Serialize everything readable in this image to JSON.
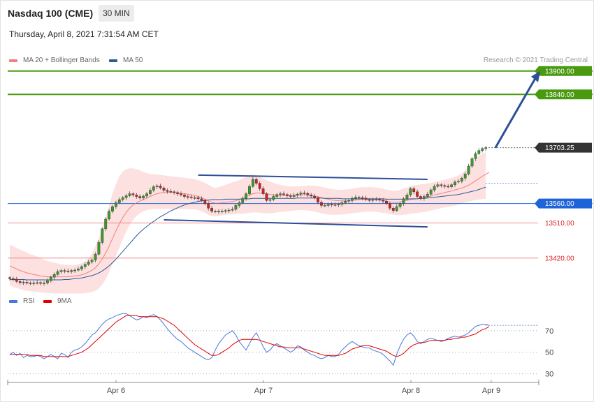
{
  "header": {
    "instrument": "Nasdaq 100 (CME)",
    "timeframe": "30 MIN",
    "datetime": "Thursday, April 8, 2021 7:31:54 AM CET"
  },
  "legend": {
    "ma20": "MA 20 + Bollinger Bands",
    "ma50": "MA 50",
    "ma20_color": "#f08080",
    "ma50_color": "#2e5a99",
    "copyright": "Research © 2021 Trading Central"
  },
  "rsi_legend": {
    "rsi": "RSI",
    "ma9": "9MA",
    "rsi_color": "#4a78d8",
    "ma9_color": "#e00000"
  },
  "colors": {
    "bull": "#3a9a2a",
    "bear": "#cc2222",
    "band_fill": "#fde0e0",
    "resistance": "#4a9a10",
    "support": "#ee8888",
    "pivot": "#1e64d8",
    "channel": "#2e4f99",
    "last_price_bg": "#333333"
  },
  "chart_data": [
    {
      "type": "candlestick",
      "title": "Nasdaq 100 (CME) 30 MIN",
      "x_ticks": [
        "Apr 6",
        "Apr 7",
        "Apr 8",
        "Apr 9"
      ],
      "ylim": [
        13330,
        13930
      ],
      "closes": [
        13367,
        13366,
        13360,
        13357,
        13358,
        13356,
        13355,
        13356,
        13357,
        13355,
        13356,
        13362,
        13371,
        13378,
        13385,
        13388,
        13387,
        13385,
        13388,
        13389,
        13392,
        13398,
        13404,
        13410,
        13415,
        13430,
        13460,
        13495,
        13520,
        13540,
        13552,
        13562,
        13570,
        13575,
        13580,
        13585,
        13582,
        13578,
        13574,
        13579,
        13585,
        13594,
        13603,
        13605,
        13600,
        13594,
        13591,
        13590,
        13588,
        13585,
        13582,
        13578,
        13577,
        13575,
        13575,
        13572,
        13568,
        13560,
        13548,
        13540,
        13540,
        13539,
        13540,
        13542,
        13543,
        13545,
        13555,
        13562,
        13572,
        13585,
        13604,
        13622,
        13612,
        13598,
        13585,
        13568,
        13570,
        13578,
        13583,
        13585,
        13583,
        13580,
        13578,
        13581,
        13584,
        13587,
        13586,
        13582,
        13579,
        13575,
        13563,
        13555,
        13555,
        13558,
        13557,
        13556,
        13558,
        13562,
        13566,
        13568,
        13573,
        13576,
        13575,
        13574,
        13570,
        13568,
        13570,
        13571,
        13569,
        13566,
        13560,
        13548,
        13542,
        13552,
        13560,
        13572,
        13582,
        13598,
        13590,
        13578,
        13573,
        13578,
        13584,
        13595,
        13604,
        13608,
        13606,
        13604,
        13603,
        13608,
        13615,
        13617,
        13625,
        13636,
        13656,
        13675,
        13688,
        13696,
        13701,
        13703
      ],
      "bollinger_upper": [
        13455,
        13450,
        13446,
        13442,
        13438,
        13434,
        13430,
        13427,
        13424,
        13420,
        13416,
        13413,
        13410,
        13408,
        13406,
        13404,
        13403,
        13402,
        13402,
        13402,
        13404,
        13407,
        13412,
        13420,
        13432,
        13450,
        13472,
        13498,
        13525,
        13555,
        13585,
        13610,
        13630,
        13642,
        13648,
        13650,
        13650,
        13648,
        13645,
        13641,
        13638,
        13636,
        13635,
        13634,
        13633,
        13632,
        13631,
        13630,
        13629,
        13628,
        13627,
        13626,
        13625,
        13624,
        13622,
        13620,
        13617,
        13613,
        13608,
        13603,
        13600,
        13602,
        13605,
        13608,
        13611,
        13614,
        13617,
        13620,
        13624,
        13628,
        13632,
        13634,
        13632,
        13628,
        13624,
        13620,
        13616,
        13613,
        13610,
        13608,
        13606,
        13605,
        13604,
        13604,
        13604,
        13604,
        13605,
        13606,
        13606,
        13606,
        13605,
        13603,
        13601,
        13599,
        13597,
        13596,
        13595,
        13595,
        13596,
        13597,
        13598,
        13600,
        13601,
        13602,
        13602,
        13602,
        13602,
        13601,
        13600,
        13598,
        13596,
        13594,
        13592,
        13593,
        13595,
        13598,
        13601,
        13604,
        13606,
        13608,
        13609,
        13610,
        13611,
        13613,
        13615,
        13617,
        13619,
        13621,
        13623,
        13625,
        13628,
        13632,
        13637,
        13645,
        13655,
        13665,
        13674,
        13682,
        13688,
        13692
      ],
      "bollinger_lower": [
        13350,
        13346,
        13343,
        13340,
        13338,
        13336,
        13335,
        13334,
        13333,
        13332,
        13331,
        13330,
        13330,
        13329,
        13329,
        13329,
        13329,
        13329,
        13329,
        13329,
        13329,
        13329,
        13330,
        13331,
        13333,
        13336,
        13342,
        13352,
        13366,
        13384,
        13404,
        13425,
        13447,
        13468,
        13488,
        13505,
        13518,
        13528,
        13535,
        13540,
        13543,
        13545,
        13546,
        13546,
        13546,
        13546,
        13546,
        13546,
        13546,
        13546,
        13546,
        13546,
        13546,
        13545,
        13545,
        13543,
        13540,
        13536,
        13531,
        13528,
        13527,
        13528,
        13530,
        13531,
        13532,
        13532,
        13533,
        13534,
        13534,
        13535,
        13536,
        13537,
        13537,
        13536,
        13535,
        13535,
        13535,
        13536,
        13537,
        13538,
        13539,
        13540,
        13541,
        13542,
        13543,
        13543,
        13543,
        13542,
        13541,
        13539,
        13537,
        13535,
        13533,
        13532,
        13531,
        13531,
        13531,
        13532,
        13533,
        13534,
        13535,
        13536,
        13537,
        13538,
        13539,
        13539,
        13539,
        13538,
        13537,
        13536,
        13535,
        13533,
        13531,
        13530,
        13530,
        13531,
        13532,
        13534,
        13535,
        13536,
        13537,
        13538,
        13540,
        13542,
        13544,
        13546,
        13548,
        13550,
        13551,
        13553,
        13555,
        13557,
        13560,
        13563,
        13565,
        13567,
        13569,
        13570,
        13571,
        13572
      ],
      "ma20": [
        13400,
        13396,
        13392,
        13388,
        13385,
        13382,
        13380,
        13378,
        13376,
        13374,
        13373,
        13372,
        13372,
        13372,
        13372,
        13372,
        13372,
        13372,
        13373,
        13374,
        13375,
        13377,
        13380,
        13384,
        13389,
        13395,
        13405,
        13418,
        13433,
        13450,
        13470,
        13490,
        13508,
        13524,
        13537,
        13548,
        13556,
        13562,
        13566,
        13570,
        13574,
        13578,
        13582,
        13585,
        13587,
        13588,
        13589,
        13589,
        13588,
        13587,
        13586,
        13585,
        13584,
        13582,
        13580,
        13578,
        13575,
        13571,
        13567,
        13563,
        13561,
        13561,
        13562,
        13563,
        13564,
        13565,
        13567,
        13570,
        13574,
        13578,
        13582,
        13585,
        13587,
        13587,
        13586,
        13585,
        13583,
        13582,
        13581,
        13580,
        13580,
        13580,
        13580,
        13581,
        13582,
        13582,
        13582,
        13582,
        13581,
        13579,
        13577,
        13575,
        13573,
        13571,
        13569,
        13568,
        13567,
        13567,
        13567,
        13567,
        13568,
        13569,
        13570,
        13571,
        13571,
        13571,
        13571,
        13570,
        13569,
        13568,
        13566,
        13564,
        13563,
        13563,
        13564,
        13566,
        13568,
        13570,
        13571,
        13572,
        13573,
        13575,
        13577,
        13579,
        13582,
        13584,
        13586,
        13588,
        13590,
        13592,
        13595,
        13597,
        13600,
        13603,
        13607,
        13612,
        13618,
        13624,
        13630,
        13635,
        13640
      ],
      "ma50": [
        13365,
        13365,
        13365,
        13365,
        13365,
        13364,
        13364,
        13364,
        13364,
        13364,
        13364,
        13364,
        13364,
        13364,
        13364,
        13364,
        13365,
        13365,
        13366,
        13367,
        13368,
        13369,
        13371,
        13373,
        13375,
        13378,
        13382,
        13387,
        13393,
        13400,
        13408,
        13417,
        13427,
        13437,
        13447,
        13457,
        13467,
        13477,
        13486,
        13494,
        13501,
        13508,
        13514,
        13520,
        13526,
        13531,
        13536,
        13541,
        13545,
        13549,
        13553,
        13556,
        13559,
        13561,
        13563,
        13565,
        13567,
        13568,
        13569,
        13570,
        13570,
        13570,
        13570,
        13571,
        13571,
        13571,
        13571,
        13571,
        13572,
        13572,
        13572,
        13573,
        13573,
        13573,
        13573,
        13573,
        13573,
        13573,
        13573,
        13573,
        13573,
        13573,
        13573,
        13573,
        13574,
        13574,
        13574,
        13574,
        13574,
        13574,
        13574,
        13574,
        13573,
        13573,
        13573,
        13573,
        13573,
        13572,
        13572,
        13572,
        13572,
        13572,
        13572,
        13572,
        13572,
        13572,
        13572,
        13572,
        13572,
        13572,
        13571,
        13571,
        13571,
        13571,
        13571,
        13571,
        13571,
        13572,
        13572,
        13572,
        13573,
        13573,
        13574,
        13575,
        13576,
        13577,
        13578,
        13579,
        13580,
        13581,
        13582,
        13583,
        13585,
        13587,
        13589,
        13591,
        13593,
        13596,
        13599,
        13602
      ],
      "levels": [
        {
          "label": "13900.00",
          "value": 13900,
          "kind": "resistance"
        },
        {
          "label": "13840.00",
          "value": 13840,
          "kind": "resistance"
        },
        {
          "label": "13703.25",
          "value": 13703.25,
          "kind": "last"
        },
        {
          "label": "13560.00",
          "value": 13560,
          "kind": "pivot"
        },
        {
          "label": "13510.00",
          "value": 13510,
          "kind": "support"
        },
        {
          "label": "13420.00",
          "value": 13420,
          "kind": "support"
        }
      ],
      "channel": {
        "upper": [
          {
            "i": 55,
            "v": 13633
          },
          {
            "i": 122,
            "v": 13622
          }
        ],
        "lower": [
          {
            "i": 45,
            "v": 13518
          },
          {
            "i": 122,
            "v": 13500
          }
        ]
      },
      "target_arrow": {
        "from": {
          "i": 141,
          "v": 13703
        },
        "to": {
          "i": 150,
          "v": 13900
        }
      }
    },
    {
      "type": "line",
      "title": "RSI",
      "ylim": [
        20,
        90
      ],
      "y_ticks": [
        30,
        50,
        70
      ],
      "series": [
        {
          "name": "RSI",
          "values": [
            48,
            50,
            47,
            49,
            45,
            47,
            46,
            46,
            47,
            46,
            44,
            46,
            48,
            46,
            44,
            49,
            48,
            45,
            50,
            52,
            53,
            55,
            58,
            62,
            66,
            68,
            72,
            76,
            79,
            81,
            82,
            84,
            85,
            86,
            86,
            84,
            82,
            80,
            81,
            83,
            82,
            84,
            85,
            83,
            80,
            76,
            72,
            68,
            65,
            62,
            60,
            57,
            54,
            52,
            50,
            48,
            46,
            44,
            43,
            45,
            52,
            58,
            62,
            66,
            68,
            70,
            66,
            60,
            56,
            52,
            58,
            64,
            68,
            62,
            55,
            50,
            52,
            56,
            58,
            56,
            54,
            52,
            50,
            52,
            56,
            55,
            52,
            50,
            48,
            47,
            45,
            44,
            45,
            47,
            46,
            46,
            48,
            52,
            55,
            58,
            60,
            58,
            56,
            55,
            54,
            54,
            52,
            51,
            50,
            48,
            45,
            42,
            38,
            48,
            56,
            62,
            66,
            68,
            65,
            60,
            58,
            60,
            62,
            63,
            62,
            61,
            60,
            61,
            63,
            64,
            65,
            64,
            65,
            66,
            68,
            71,
            74,
            75,
            76,
            76,
            75
          ]
        },
        {
          "name": "9MA",
          "values": [
            48,
            48,
            48,
            48,
            48,
            48,
            47,
            47,
            47,
            47,
            46,
            46,
            46,
            46,
            46,
            46,
            46,
            46,
            47,
            48,
            49,
            50,
            52,
            54,
            57,
            60,
            63,
            66,
            69,
            72,
            75,
            78,
            80,
            82,
            84,
            84,
            84,
            84,
            83,
            83,
            83,
            83,
            83,
            83,
            82,
            81,
            79,
            77,
            75,
            72,
            69,
            66,
            63,
            60,
            57,
            55,
            53,
            51,
            49,
            47,
            47,
            48,
            50,
            52,
            54,
            57,
            59,
            61,
            62,
            62,
            62,
            62,
            62,
            61,
            60,
            59,
            58,
            57,
            56,
            55,
            55,
            54,
            54,
            54,
            54,
            54,
            53,
            52,
            51,
            50,
            49,
            48,
            47,
            47,
            47,
            47,
            47,
            48,
            49,
            51,
            53,
            54,
            55,
            56,
            56,
            56,
            55,
            54,
            53,
            52,
            51,
            49,
            47,
            46,
            47,
            49,
            52,
            55,
            57,
            58,
            59,
            59,
            60,
            61,
            61,
            61,
            61,
            61,
            62,
            62,
            63,
            63,
            64,
            64,
            65,
            66,
            67,
            69,
            71,
            72,
            74
          ]
        }
      ]
    }
  ]
}
